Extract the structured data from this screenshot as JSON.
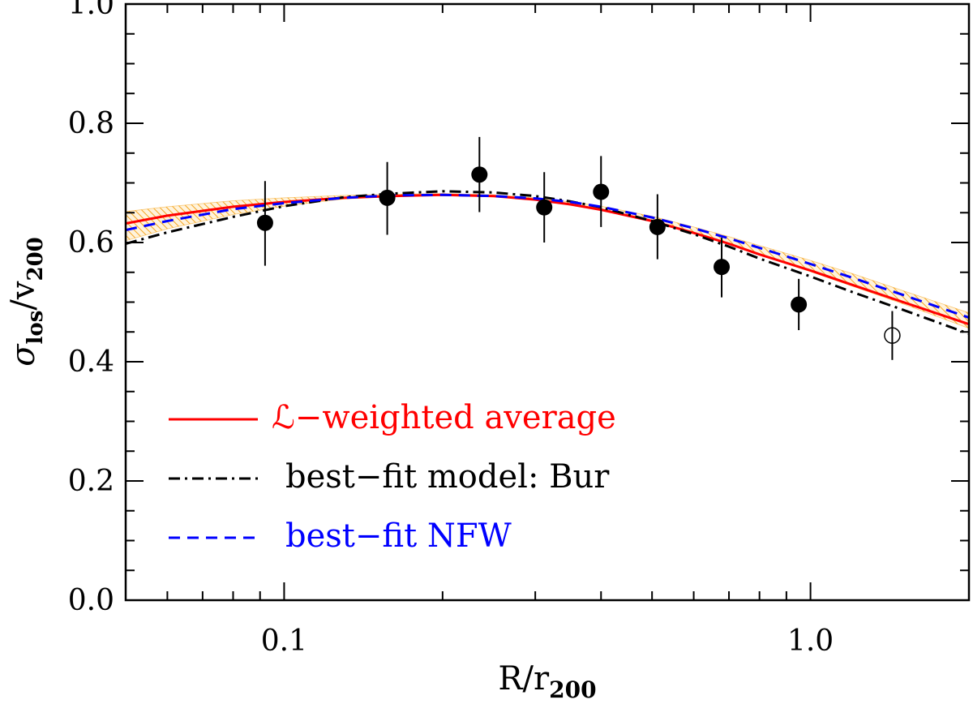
{
  "chart_data": {
    "type": "line",
    "x_scale": "log",
    "xlim": [
      0.05,
      2.0
    ],
    "ylim": [
      0.0,
      1.0
    ],
    "x_ticks": [
      {
        "value": 0.1,
        "label": "0.1"
      },
      {
        "value": 1.0,
        "label": "1.0"
      }
    ],
    "y_ticks": [
      {
        "value": 0.0,
        "label": "0.0"
      },
      {
        "value": 0.2,
        "label": "0.2"
      },
      {
        "value": 0.4,
        "label": "0.4"
      },
      {
        "value": 0.6,
        "label": "0.6"
      },
      {
        "value": 0.8,
        "label": "0.8"
      },
      {
        "value": 1.0,
        "label": "1.0"
      }
    ],
    "xlabel": {
      "main": "R/r",
      "sub": "200"
    },
    "ylabel": {
      "main_symbol": "σ",
      "sub1": "los",
      "slash": "/v",
      "sub2": "200"
    },
    "series": [
      {
        "name": "ℒ−weighted average",
        "color": "#ff0000",
        "style": "solid",
        "points": [
          [
            0.05,
            0.632
          ],
          [
            0.06,
            0.645
          ],
          [
            0.08,
            0.66
          ],
          [
            0.1,
            0.668
          ],
          [
            0.13,
            0.675
          ],
          [
            0.16,
            0.678
          ],
          [
            0.2,
            0.68
          ],
          [
            0.25,
            0.678
          ],
          [
            0.3,
            0.672
          ],
          [
            0.35,
            0.664
          ],
          [
            0.4,
            0.655
          ],
          [
            0.5,
            0.636
          ],
          [
            0.6,
            0.616
          ],
          [
            0.7,
            0.598
          ],
          [
            0.8,
            0.58
          ],
          [
            1.0,
            0.553
          ],
          [
            1.2,
            0.529
          ],
          [
            1.5,
            0.5
          ],
          [
            2.0,
            0.463
          ]
        ]
      },
      {
        "name": "best−fit model: Bur",
        "color": "#000000",
        "style": "dashdot",
        "points": [
          [
            0.05,
            0.598
          ],
          [
            0.06,
            0.617
          ],
          [
            0.08,
            0.643
          ],
          [
            0.1,
            0.661
          ],
          [
            0.13,
            0.676
          ],
          [
            0.16,
            0.682
          ],
          [
            0.2,
            0.686
          ],
          [
            0.25,
            0.684
          ],
          [
            0.3,
            0.678
          ],
          [
            0.35,
            0.669
          ],
          [
            0.4,
            0.659
          ],
          [
            0.5,
            0.636
          ],
          [
            0.6,
            0.614
          ],
          [
            0.7,
            0.593
          ],
          [
            0.8,
            0.573
          ],
          [
            1.0,
            0.543
          ],
          [
            1.2,
            0.517
          ],
          [
            1.5,
            0.487
          ],
          [
            2.0,
            0.447
          ]
        ]
      },
      {
        "name": "best−fit NFW",
        "color": "#0000ff",
        "style": "dashed",
        "points": [
          [
            0.05,
            0.621
          ],
          [
            0.06,
            0.636
          ],
          [
            0.08,
            0.656
          ],
          [
            0.1,
            0.666
          ],
          [
            0.13,
            0.675
          ],
          [
            0.16,
            0.679
          ],
          [
            0.2,
            0.68
          ],
          [
            0.25,
            0.678
          ],
          [
            0.3,
            0.674
          ],
          [
            0.35,
            0.668
          ],
          [
            0.4,
            0.66
          ],
          [
            0.5,
            0.642
          ],
          [
            0.6,
            0.624
          ],
          [
            0.7,
            0.607
          ],
          [
            0.8,
            0.591
          ],
          [
            1.0,
            0.564
          ],
          [
            1.2,
            0.541
          ],
          [
            1.5,
            0.512
          ],
          [
            2.0,
            0.474
          ]
        ]
      }
    ],
    "band": {
      "color": "#f5a623",
      "lower": [
        [
          0.05,
          0.603
        ],
        [
          0.06,
          0.623
        ],
        [
          0.08,
          0.647
        ],
        [
          0.1,
          0.661
        ],
        [
          0.13,
          0.673
        ],
        [
          0.16,
          0.677
        ],
        [
          0.2,
          0.679
        ],
        [
          0.25,
          0.677
        ],
        [
          0.3,
          0.671
        ],
        [
          0.35,
          0.663
        ],
        [
          0.4,
          0.654
        ],
        [
          0.5,
          0.635
        ],
        [
          0.6,
          0.615
        ],
        [
          0.7,
          0.597
        ],
        [
          0.8,
          0.579
        ],
        [
          1.0,
          0.551
        ],
        [
          1.2,
          0.527
        ],
        [
          1.5,
          0.497
        ],
        [
          2.0,
          0.456
        ]
      ],
      "upper": [
        [
          0.05,
          0.652
        ],
        [
          0.06,
          0.66
        ],
        [
          0.08,
          0.67
        ],
        [
          0.1,
          0.675
        ],
        [
          0.13,
          0.679
        ],
        [
          0.16,
          0.681
        ],
        [
          0.2,
          0.682
        ],
        [
          0.25,
          0.68
        ],
        [
          0.3,
          0.675
        ],
        [
          0.35,
          0.668
        ],
        [
          0.4,
          0.661
        ],
        [
          0.5,
          0.644
        ],
        [
          0.6,
          0.626
        ],
        [
          0.7,
          0.61
        ],
        [
          0.8,
          0.595
        ],
        [
          1.0,
          0.57
        ],
        [
          1.2,
          0.548
        ],
        [
          1.5,
          0.519
        ],
        [
          2.0,
          0.482
        ]
      ]
    },
    "data_points": [
      {
        "x": 0.092,
        "y": 0.633,
        "err_lo": 0.072,
        "err_hi": 0.07,
        "filled": true
      },
      {
        "x": 0.157,
        "y": 0.675,
        "err_lo": 0.062,
        "err_hi": 0.06,
        "filled": true
      },
      {
        "x": 0.235,
        "y": 0.714,
        "err_lo": 0.063,
        "err_hi": 0.063,
        "filled": true
      },
      {
        "x": 0.312,
        "y": 0.659,
        "err_lo": 0.059,
        "err_hi": 0.059,
        "filled": true
      },
      {
        "x": 0.4,
        "y": 0.685,
        "err_lo": 0.059,
        "err_hi": 0.06,
        "filled": true
      },
      {
        "x": 0.512,
        "y": 0.626,
        "err_lo": 0.054,
        "err_hi": 0.055,
        "filled": true
      },
      {
        "x": 0.678,
        "y": 0.559,
        "err_lo": 0.051,
        "err_hi": 0.049,
        "filled": true
      },
      {
        "x": 0.95,
        "y": 0.496,
        "err_lo": 0.043,
        "err_hi": 0.043,
        "filled": true
      },
      {
        "x": 1.43,
        "y": 0.444,
        "err_lo": 0.041,
        "err_hi": 0.041,
        "filled": false
      }
    ],
    "legend": {
      "location": "lower-left",
      "entries": [
        {
          "label": "ℒ−weighted average",
          "color": "#ff0000",
          "style": "solid"
        },
        {
          "label": "best−fit model: Bur",
          "color": "#000000",
          "style": "dashdot"
        },
        {
          "label": "best−fit NFW",
          "color": "#0000ff",
          "style": "dashed"
        }
      ]
    },
    "grid": false
  }
}
